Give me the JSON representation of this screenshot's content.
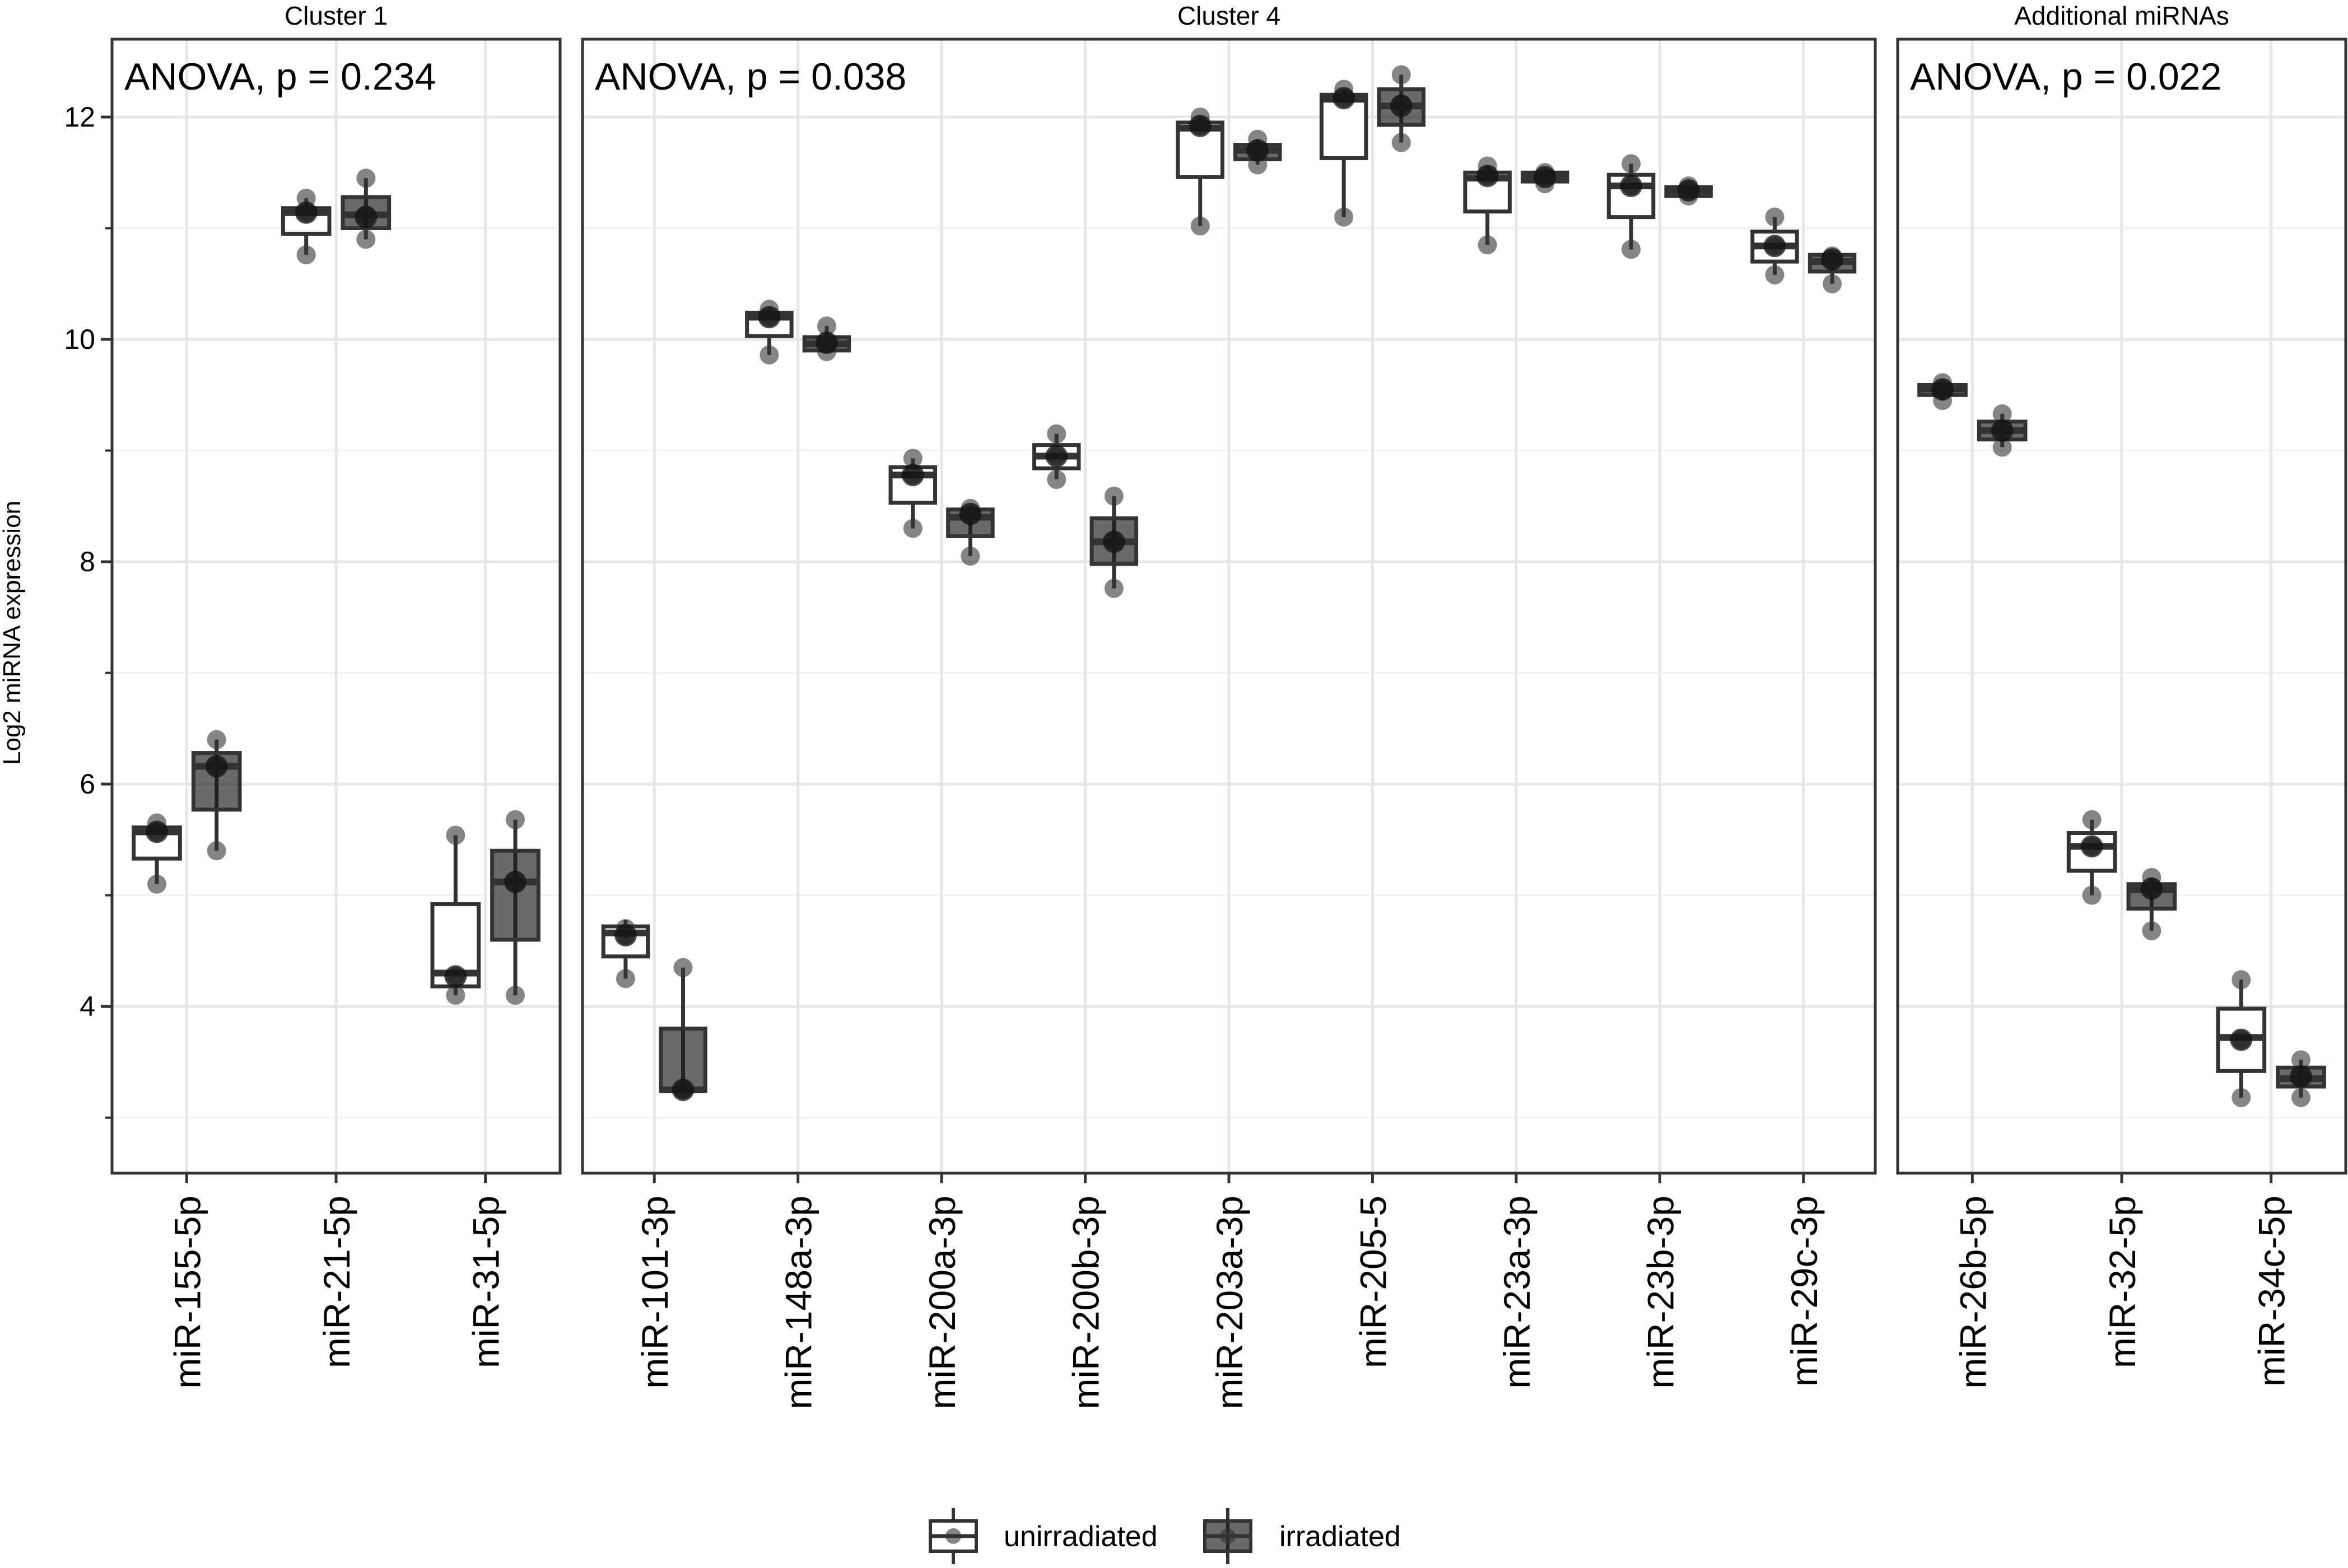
{
  "chart_data": {
    "type": "box",
    "ylabel": "Log2 miRNA expression",
    "ylim": [
      2.5,
      12.7
    ],
    "yticks": [
      4,
      6,
      8,
      10,
      12
    ],
    "yminor": [
      3,
      5,
      7,
      9,
      11
    ],
    "grid": true,
    "legend_position": "bottom",
    "groups": [
      {
        "key": "unirradiated",
        "label": "unirradiated",
        "fill": "#ffffff",
        "alpha": 0
      },
      {
        "key": "irradiated",
        "label": "irradiated",
        "fill": "#1a1a1a",
        "alpha": 0.65
      }
    ],
    "panels": [
      {
        "name": "Cluster 1",
        "annotation": "ANOVA, p = 0.234",
        "mirnas": [
          {
            "label": "miR-155-5p",
            "unirradiated": {
              "q1": 5.33,
              "median": 5.57,
              "q3": 5.61,
              "min": 5.1,
              "max": 5.65,
              "mean": 5.57,
              "points": [
                5.1,
                5.57,
                5.65
              ]
            },
            "irradiated": {
              "q1": 5.77,
              "median": 6.16,
              "q3": 6.28,
              "min": 5.4,
              "max": 6.4,
              "mean": 6.16,
              "points": [
                5.4,
                6.16,
                6.4
              ]
            }
          },
          {
            "label": "miR-21-5p",
            "unirradiated": {
              "q1": 10.95,
              "median": 11.14,
              "q3": 11.18,
              "min": 10.76,
              "max": 11.27,
              "mean": 11.14,
              "points": [
                10.76,
                11.14,
                11.27
              ]
            },
            "irradiated": {
              "q1": 11.0,
              "median": 11.12,
              "q3": 11.28,
              "min": 10.9,
              "max": 11.45,
              "mean": 11.1,
              "points": [
                10.9,
                11.12,
                11.45
              ]
            }
          },
          {
            "label": "miR-31-5p",
            "unirradiated": {
              "q1": 4.18,
              "median": 4.3,
              "q3": 4.92,
              "min": 4.1,
              "max": 5.54,
              "mean": 4.27,
              "points": [
                4.1,
                4.27,
                5.54
              ]
            },
            "irradiated": {
              "q1": 4.6,
              "median": 5.12,
              "q3": 5.4,
              "min": 4.1,
              "max": 5.68,
              "mean": 5.12,
              "points": [
                4.1,
                5.12,
                5.68
              ]
            }
          }
        ]
      },
      {
        "name": "Cluster 4",
        "annotation": "ANOVA, p = 0.038",
        "mirnas": [
          {
            "label": "miR-101-3p",
            "unirradiated": {
              "q1": 4.45,
              "median": 4.66,
              "q3": 4.72,
              "min": 4.25,
              "max": 4.78,
              "mean": 4.64,
              "points": [
                4.25,
                4.64,
                4.7
              ]
            },
            "irradiated": {
              "q1": 3.24,
              "median": 3.25,
              "q3": 3.8,
              "min": 3.24,
              "max": 4.35,
              "mean": 3.25,
              "points": [
                3.25,
                3.25,
                4.35
              ]
            }
          },
          {
            "label": "miR-148a-3p",
            "unirradiated": {
              "q1": 10.03,
              "median": 10.2,
              "q3": 10.24,
              "min": 9.86,
              "max": 10.27,
              "mean": 10.2,
              "points": [
                9.86,
                10.2,
                10.27
              ]
            },
            "irradiated": {
              "q1": 9.9,
              "median": 9.96,
              "q3": 10.02,
              "min": 9.88,
              "max": 10.12,
              "mean": 9.97,
              "points": [
                9.89,
                9.97,
                10.12
              ]
            }
          },
          {
            "label": "miR-200a-3p",
            "unirradiated": {
              "q1": 8.53,
              "median": 8.78,
              "q3": 8.85,
              "min": 8.3,
              "max": 8.93,
              "mean": 8.78,
              "points": [
                8.3,
                8.78,
                8.93
              ]
            },
            "irradiated": {
              "q1": 8.23,
              "median": 8.4,
              "q3": 8.47,
              "min": 8.05,
              "max": 8.5,
              "mean": 8.43,
              "points": [
                8.05,
                8.43,
                8.48
              ]
            }
          },
          {
            "label": "miR-200b-3p",
            "unirradiated": {
              "q1": 8.84,
              "median": 8.95,
              "q3": 9.05,
              "min": 8.74,
              "max": 9.15,
              "mean": 8.95,
              "points": [
                8.74,
                8.95,
                9.15
              ]
            },
            "irradiated": {
              "q1": 7.98,
              "median": 8.18,
              "q3": 8.39,
              "min": 7.76,
              "max": 8.59,
              "mean": 8.18,
              "points": [
                7.76,
                8.18,
                8.59
              ]
            }
          },
          {
            "label": "miR-203a-3p",
            "unirradiated": {
              "q1": 11.46,
              "median": 11.9,
              "q3": 11.95,
              "min": 11.02,
              "max": 12.0,
              "mean": 11.92,
              "points": [
                11.02,
                11.92,
                12.0
              ]
            },
            "irradiated": {
              "q1": 11.62,
              "median": 11.7,
              "q3": 11.75,
              "min": 11.57,
              "max": 11.8,
              "mean": 11.7,
              "points": [
                11.57,
                11.7,
                11.8
              ]
            }
          },
          {
            "label": "miR-205-5",
            "unirradiated": {
              "q1": 11.63,
              "median": 12.16,
              "q3": 12.2,
              "min": 11.1,
              "max": 12.25,
              "mean": 12.17,
              "points": [
                11.1,
                12.17,
                12.25
              ]
            },
            "irradiated": {
              "q1": 11.93,
              "median": 12.1,
              "q3": 12.25,
              "min": 11.77,
              "max": 12.38,
              "mean": 12.1,
              "points": [
                11.77,
                12.12,
                12.38
              ]
            }
          },
          {
            "label": "miR-23a-3p",
            "unirradiated": {
              "q1": 11.15,
              "median": 11.45,
              "q3": 11.5,
              "min": 10.85,
              "max": 11.56,
              "mean": 11.47,
              "points": [
                10.85,
                11.47,
                11.56
              ]
            },
            "irradiated": {
              "q1": 11.42,
              "median": 11.46,
              "q3": 11.5,
              "min": 11.4,
              "max": 11.52,
              "mean": 11.46,
              "points": [
                11.4,
                11.46,
                11.5
              ]
            }
          },
          {
            "label": "miR-23b-3p",
            "unirradiated": {
              "q1": 11.1,
              "median": 11.38,
              "q3": 11.48,
              "min": 10.81,
              "max": 11.58,
              "mean": 11.38,
              "points": [
                10.81,
                11.38,
                11.58
              ]
            },
            "irradiated": {
              "q1": 11.29,
              "median": 11.34,
              "q3": 11.37,
              "min": 11.28,
              "max": 11.39,
              "mean": 11.34,
              "points": [
                11.29,
                11.34,
                11.38
              ]
            }
          },
          {
            "label": "miR-29c-3p",
            "unirradiated": {
              "q1": 10.7,
              "median": 10.84,
              "q3": 10.97,
              "min": 10.58,
              "max": 11.1,
              "mean": 10.84,
              "points": [
                10.58,
                10.84,
                11.1
              ]
            },
            "irradiated": {
              "q1": 10.61,
              "median": 10.7,
              "q3": 10.76,
              "min": 10.5,
              "max": 10.77,
              "mean": 10.72,
              "points": [
                10.5,
                10.72,
                10.75
              ]
            }
          }
        ]
      },
      {
        "name": "Additional miRNAs",
        "annotation": "ANOVA, p = 0.022",
        "mirnas": [
          {
            "label": "miR-26b-5p",
            "unirradiated": {
              "q1": 9.5,
              "median": 9.55,
              "q3": 9.59,
              "min": 9.45,
              "max": 9.61,
              "mean": 9.55,
              "points": [
                9.45,
                9.55,
                9.61
              ]
            },
            "irradiated": {
              "q1": 9.1,
              "median": 9.18,
              "q3": 9.26,
              "min": 9.03,
              "max": 9.33,
              "mean": 9.18,
              "points": [
                9.03,
                9.18,
                9.33
              ]
            }
          },
          {
            "label": "miR-32-5p",
            "unirradiated": {
              "q1": 5.22,
              "median": 5.44,
              "q3": 5.56,
              "min": 5.0,
              "max": 5.68,
              "mean": 5.44,
              "points": [
                5.0,
                5.44,
                5.68
              ]
            },
            "irradiated": {
              "q1": 4.88,
              "median": 5.05,
              "q3": 5.1,
              "min": 4.68,
              "max": 5.16,
              "mean": 5.06,
              "points": [
                4.68,
                5.06,
                5.16
              ]
            }
          },
          {
            "label": "miR-34c-5p",
            "unirradiated": {
              "q1": 3.42,
              "median": 3.72,
              "q3": 3.98,
              "min": 3.18,
              "max": 4.24,
              "mean": 3.7,
              "points": [
                3.18,
                3.7,
                4.24
              ]
            },
            "irradiated": {
              "q1": 3.28,
              "median": 3.35,
              "q3": 3.45,
              "min": 3.18,
              "max": 3.52,
              "mean": 3.37,
              "points": [
                3.18,
                3.37,
                3.52
              ]
            }
          }
        ]
      }
    ]
  }
}
